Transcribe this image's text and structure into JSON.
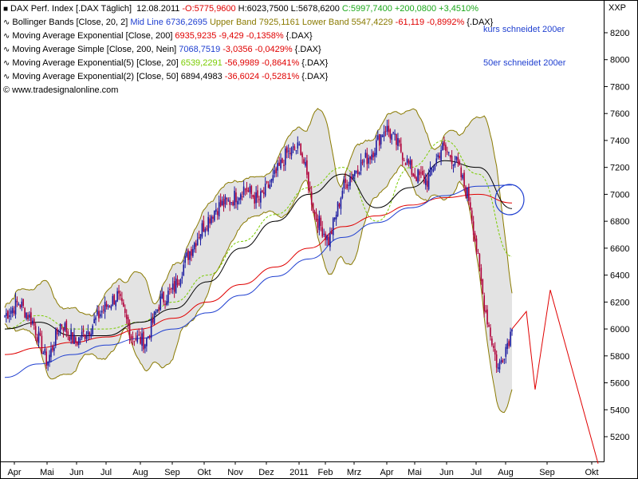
{
  "legend": {
    "line1": {
      "icon": "square-marker",
      "name": "DAX Perf. Index [.DAX Täglich]",
      "date": "12.08.2011",
      "open": "-O:5775,9600",
      "high": "H:6023,7500",
      "low": "L:5678,6200",
      "close": "C:5997,7400",
      "change": "+200,0800",
      "pct": "+3,4510%"
    },
    "line2": {
      "name": "Bollinger Bands [Close, 20, 2]",
      "mid": "Mid Line 6736,2695",
      "upper": "Upper Band 7925,1161",
      "lower": "Lower Band 5547,4229",
      "chg": "-61,119",
      "pct": "-0,8992%",
      "sym": "{.DAX}"
    },
    "line3": {
      "name": "Moving Average Exponential [Close, 200]",
      "value": "6935,9235",
      "chg": "-9,429",
      "pct": "-0,1358%",
      "sym": "{.DAX}"
    },
    "line4": {
      "name": "Moving Average Simple [Close, 200, Nein]",
      "value": "7068,7519",
      "chg": "-3,0356",
      "pct": "-0,0429%",
      "sym": "{.DAX}"
    },
    "line5": {
      "name": "Moving Average Exponential(5) [Close, 20]",
      "value": "6539,2291",
      "chg": "-56,9989",
      "pct": "-0,8641%",
      "sym": "{.DAX}"
    },
    "line6": {
      "name": "Moving Average Exponential(2) [Close, 50]",
      "value": "6894,4983",
      "chg": "-36,6024",
      "pct": "-0,5281%",
      "sym": "{.DAX}"
    },
    "footer": "© www.tradesignalonline.com"
  },
  "annotations": {
    "kurs": "kurs schneidet 200er",
    "fifty": "50er schneidet 200er"
  },
  "colors": {
    "up": "#1a1aa0",
    "down": "#b0003a",
    "band_fill": "#e3e3e3",
    "band_line": "#8a7a00",
    "ema200": "#e00000",
    "sma200": "#1f3fd0",
    "ema20": "#7acc00",
    "ema50": "#000000",
    "projection": "#e00000",
    "circle": "#1f3fd0"
  },
  "chart_data": {
    "type": "line",
    "title": "DAX Perf. Index [.DAX Täglich]",
    "ylabel": "XXP",
    "ylim": [
      5000,
      8400
    ],
    "y_ticks": [
      5200,
      5400,
      5600,
      5800,
      6000,
      6200,
      6400,
      6600,
      6800,
      7000,
      7200,
      7400,
      7600,
      7800,
      8000,
      8200
    ],
    "x_ticks": [
      "Apr",
      "Mai",
      "Jun",
      "Jul",
      "Aug",
      "Sep",
      "Okt",
      "Nov",
      "Dez",
      "2011",
      "Feb",
      "Mrz",
      "Apr",
      "Mai",
      "Jun",
      "Jul",
      "Aug",
      "Sep",
      "Okt"
    ],
    "grid": false,
    "price_close": [
      [
        "Apr",
        6100
      ],
      [
        "Apr",
        6200
      ],
      [
        "Mai",
        6050
      ],
      [
        "Mai",
        5750
      ],
      [
        "Jun",
        6050
      ],
      [
        "Jun",
        5900
      ],
      [
        "Jul",
        6000
      ],
      [
        "Jul",
        6150
      ],
      [
        "Aug",
        6250
      ],
      [
        "Aug",
        5950
      ],
      [
        "Sep",
        5900
      ],
      [
        "Sep",
        6200
      ],
      [
        "Okt",
        6300
      ],
      [
        "Okt",
        6550
      ],
      [
        "Nov",
        6750
      ],
      [
        "Nov",
        6900
      ],
      [
        "Dez",
        6950
      ],
      [
        "Dez",
        7050
      ],
      [
        "2011",
        6950
      ],
      [
        "2011",
        7100
      ],
      [
        "Feb",
        7300
      ],
      [
        "Feb",
        7350
      ],
      [
        "Mrz",
        6850
      ],
      [
        "Mrz",
        6650
      ],
      [
        "Mrz",
        7050
      ],
      [
        "Apr",
        7200
      ],
      [
        "Apr",
        7300
      ],
      [
        "Mai",
        7500
      ],
      [
        "Mai",
        7350
      ],
      [
        "Jun",
        7150
      ],
      [
        "Jun",
        7100
      ],
      [
        "Jul",
        7350
      ],
      [
        "Jul",
        7250
      ],
      [
        "Aug",
        6950
      ],
      [
        "Aug",
        6200
      ],
      [
        "Aug",
        5700
      ],
      [
        "Aug",
        5997.74
      ]
    ],
    "series": [
      {
        "name": "Moving Average Exponential [Close, 200]",
        "values": [
          5810,
          5860,
          5900,
          5940,
          6000,
          6080,
          6200,
          6330,
          6460,
          6600,
          6760,
          6840,
          6920,
          6975,
          7000,
          6936
        ]
      },
      {
        "name": "Moving Average Simple [Close, 200, Nein]",
        "values": [
          5640,
          5740,
          5810,
          5880,
          5930,
          6000,
          6120,
          6250,
          6390,
          6520,
          6680,
          6790,
          6900,
          6990,
          7060,
          7069
        ]
      },
      {
        "name": "Moving Average Exponential(5) [Close, 20]",
        "values": [
          6000,
          6100,
          6000,
          6000,
          6050,
          6200,
          6400,
          6650,
          6850,
          7050,
          7200,
          6800,
          7200,
          7400,
          7150,
          6539
        ]
      },
      {
        "name": "Moving Average Exponential(2) [Close, 50]",
        "values": [
          6000,
          6050,
          5950,
          5950,
          6050,
          6150,
          6350,
          6600,
          6800,
          7000,
          7150,
          6900,
          7050,
          7250,
          7200,
          6894
        ]
      },
      {
        "name": "Bollinger Bands [Close, 20, 2]",
        "values": [
          5547,
          7925
        ]
      }
    ],
    "projection": [
      6000,
      6130,
      5550,
      6290,
      5000
    ]
  }
}
